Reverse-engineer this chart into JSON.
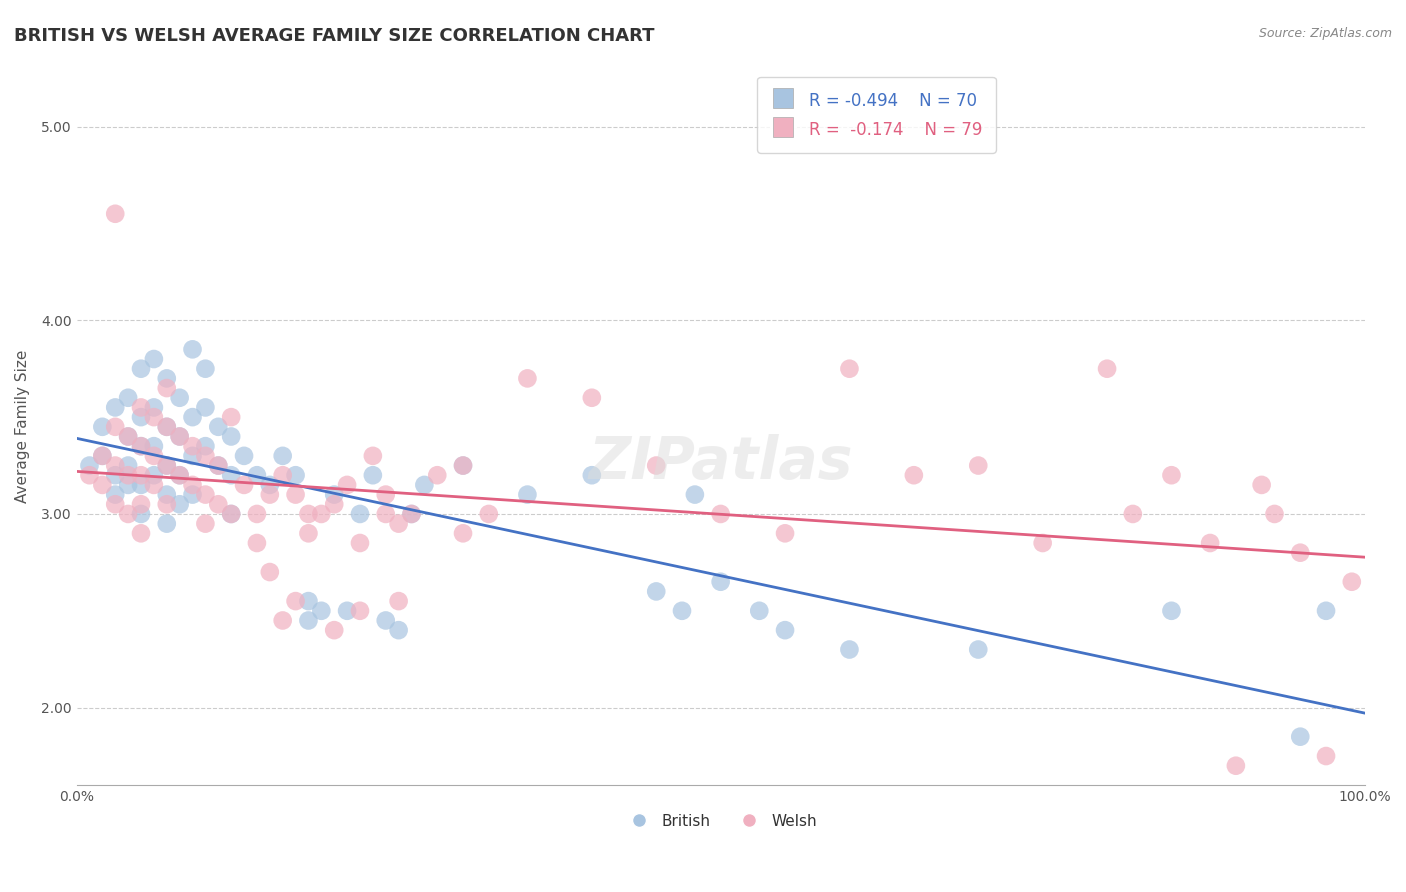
{
  "title": "BRITISH VS WELSH AVERAGE FAMILY SIZE CORRELATION CHART",
  "source_text": "Source: ZipAtlas.com",
  "xlabel": "",
  "ylabel": "Average Family Size",
  "xlim": [
    0.0,
    1.0
  ],
  "ylim": [
    1.6,
    5.3
  ],
  "yticks": [
    2.0,
    3.0,
    4.0,
    5.0
  ],
  "ytick_labels": [
    "2.00",
    "3.00",
    "4.00",
    "5.00"
  ],
  "xtick_labels": [
    "0.0%",
    "100.0%"
  ],
  "british_color": "#a8c4e0",
  "welsh_color": "#f0b0c0",
  "british_line_color": "#4472c4",
  "welsh_line_color": "#e06080",
  "legend_R_british": "R = -0.494",
  "legend_N_british": "N = 70",
  "legend_R_welsh": "R =  -0.174",
  "legend_N_welsh": "N = 79",
  "background_color": "#ffffff",
  "grid_color": "#cccccc",
  "title_fontsize": 13,
  "axis_label_fontsize": 11,
  "legend_fontsize": 12,
  "british_points": [
    [
      0.01,
      3.25
    ],
    [
      0.02,
      3.45
    ],
    [
      0.02,
      3.3
    ],
    [
      0.03,
      3.55
    ],
    [
      0.03,
      3.2
    ],
    [
      0.03,
      3.1
    ],
    [
      0.04,
      3.6
    ],
    [
      0.04,
      3.4
    ],
    [
      0.04,
      3.25
    ],
    [
      0.04,
      3.15
    ],
    [
      0.05,
      3.75
    ],
    [
      0.05,
      3.5
    ],
    [
      0.05,
      3.35
    ],
    [
      0.05,
      3.15
    ],
    [
      0.05,
      3.0
    ],
    [
      0.06,
      3.8
    ],
    [
      0.06,
      3.55
    ],
    [
      0.06,
      3.35
    ],
    [
      0.06,
      3.2
    ],
    [
      0.07,
      3.7
    ],
    [
      0.07,
      3.45
    ],
    [
      0.07,
      3.25
    ],
    [
      0.07,
      3.1
    ],
    [
      0.07,
      2.95
    ],
    [
      0.08,
      3.6
    ],
    [
      0.08,
      3.4
    ],
    [
      0.08,
      3.2
    ],
    [
      0.08,
      3.05
    ],
    [
      0.09,
      3.85
    ],
    [
      0.09,
      3.5
    ],
    [
      0.09,
      3.3
    ],
    [
      0.09,
      3.1
    ],
    [
      0.1,
      3.75
    ],
    [
      0.1,
      3.55
    ],
    [
      0.1,
      3.35
    ],
    [
      0.11,
      3.45
    ],
    [
      0.11,
      3.25
    ],
    [
      0.12,
      3.4
    ],
    [
      0.12,
      3.2
    ],
    [
      0.12,
      3.0
    ],
    [
      0.13,
      3.3
    ],
    [
      0.14,
      3.2
    ],
    [
      0.15,
      3.15
    ],
    [
      0.16,
      3.3
    ],
    [
      0.17,
      3.2
    ],
    [
      0.18,
      2.55
    ],
    [
      0.18,
      2.45
    ],
    [
      0.19,
      2.5
    ],
    [
      0.2,
      3.1
    ],
    [
      0.21,
      2.5
    ],
    [
      0.22,
      3.0
    ],
    [
      0.23,
      3.2
    ],
    [
      0.24,
      2.45
    ],
    [
      0.25,
      2.4
    ],
    [
      0.26,
      3.0
    ],
    [
      0.27,
      3.15
    ],
    [
      0.3,
      3.25
    ],
    [
      0.35,
      3.1
    ],
    [
      0.4,
      3.2
    ],
    [
      0.45,
      2.6
    ],
    [
      0.47,
      2.5
    ],
    [
      0.48,
      3.1
    ],
    [
      0.5,
      2.65
    ],
    [
      0.53,
      2.5
    ],
    [
      0.55,
      2.4
    ],
    [
      0.6,
      2.3
    ],
    [
      0.7,
      2.3
    ],
    [
      0.85,
      2.5
    ],
    [
      0.95,
      1.85
    ],
    [
      0.97,
      2.5
    ]
  ],
  "welsh_points": [
    [
      0.01,
      3.2
    ],
    [
      0.02,
      3.3
    ],
    [
      0.02,
      3.15
    ],
    [
      0.03,
      4.55
    ],
    [
      0.03,
      3.45
    ],
    [
      0.03,
      3.25
    ],
    [
      0.03,
      3.05
    ],
    [
      0.04,
      3.4
    ],
    [
      0.04,
      3.2
    ],
    [
      0.04,
      3.0
    ],
    [
      0.05,
      3.55
    ],
    [
      0.05,
      3.35
    ],
    [
      0.05,
      3.2
    ],
    [
      0.05,
      3.05
    ],
    [
      0.05,
      2.9
    ],
    [
      0.06,
      3.5
    ],
    [
      0.06,
      3.3
    ],
    [
      0.06,
      3.15
    ],
    [
      0.07,
      3.65
    ],
    [
      0.07,
      3.45
    ],
    [
      0.07,
      3.25
    ],
    [
      0.07,
      3.05
    ],
    [
      0.08,
      3.4
    ],
    [
      0.08,
      3.2
    ],
    [
      0.09,
      3.35
    ],
    [
      0.09,
      3.15
    ],
    [
      0.1,
      3.3
    ],
    [
      0.1,
      3.1
    ],
    [
      0.1,
      2.95
    ],
    [
      0.11,
      3.25
    ],
    [
      0.11,
      3.05
    ],
    [
      0.12,
      3.5
    ],
    [
      0.12,
      3.0
    ],
    [
      0.13,
      3.15
    ],
    [
      0.14,
      3.0
    ],
    [
      0.14,
      2.85
    ],
    [
      0.15,
      3.1
    ],
    [
      0.15,
      2.7
    ],
    [
      0.16,
      3.2
    ],
    [
      0.16,
      2.45
    ],
    [
      0.17,
      3.1
    ],
    [
      0.17,
      2.55
    ],
    [
      0.18,
      3.0
    ],
    [
      0.18,
      2.9
    ],
    [
      0.19,
      3.0
    ],
    [
      0.2,
      3.05
    ],
    [
      0.2,
      2.4
    ],
    [
      0.21,
      3.15
    ],
    [
      0.22,
      2.85
    ],
    [
      0.22,
      2.5
    ],
    [
      0.23,
      3.3
    ],
    [
      0.24,
      3.1
    ],
    [
      0.24,
      3.0
    ],
    [
      0.25,
      2.95
    ],
    [
      0.25,
      2.55
    ],
    [
      0.26,
      3.0
    ],
    [
      0.28,
      3.2
    ],
    [
      0.3,
      3.25
    ],
    [
      0.3,
      2.9
    ],
    [
      0.32,
      3.0
    ],
    [
      0.35,
      3.7
    ],
    [
      0.4,
      3.6
    ],
    [
      0.45,
      3.25
    ],
    [
      0.5,
      3.0
    ],
    [
      0.55,
      2.9
    ],
    [
      0.6,
      3.75
    ],
    [
      0.65,
      3.2
    ],
    [
      0.7,
      3.25
    ],
    [
      0.75,
      2.85
    ],
    [
      0.8,
      3.75
    ],
    [
      0.82,
      3.0
    ],
    [
      0.85,
      3.2
    ],
    [
      0.88,
      2.85
    ],
    [
      0.9,
      1.7
    ],
    [
      0.92,
      3.15
    ],
    [
      0.93,
      3.0
    ],
    [
      0.95,
      2.8
    ],
    [
      0.97,
      1.75
    ],
    [
      0.99,
      2.65
    ]
  ]
}
